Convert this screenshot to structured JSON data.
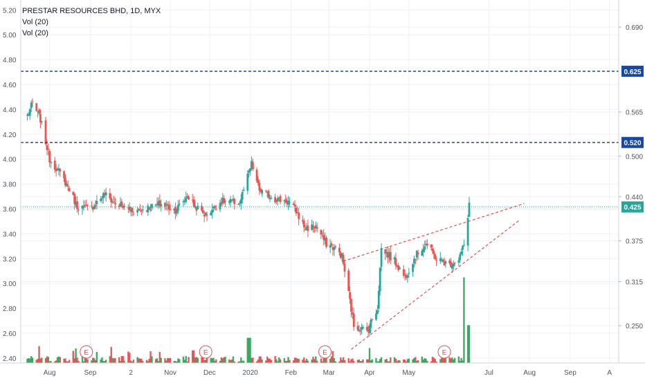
{
  "legend": {
    "title": "PRESTAR RESOURCES BHD, 1D, MYX",
    "indicators": [
      "Vol (20)",
      "Vol (20)"
    ]
  },
  "colors": {
    "up": "#26a69a",
    "down": "#ef5350",
    "vol_up": "#2e9e56",
    "vol_down": "#e04848",
    "grid": "#eef1f5",
    "level": "#1848a0",
    "current": "#26a69a",
    "trend": "#e05050",
    "text": "#50535e"
  },
  "chart_data": {
    "type": "candlestick",
    "left_axis": {
      "ticks": [
        "5.20",
        "5.00",
        "4.80",
        "4.60",
        "4.40",
        "4.20",
        "4.00",
        "3.80",
        "3.60",
        "3.40",
        "3.20",
        "3.00",
        "2.80",
        "2.60",
        "2.40"
      ],
      "range": [
        2.36,
        5.28
      ]
    },
    "right_axis": {
      "ticks": [
        "0.690",
        "0.565",
        "0.500",
        "0.440",
        "0.375",
        "0.315",
        "0.250"
      ],
      "range": [
        0.195,
        0.73
      ]
    },
    "x_ticks": [
      "Aug",
      "Sep",
      "2",
      "Nov",
      "Dec",
      "2020",
      "Feb",
      "Mar",
      "Apr",
      "May",
      "Jul",
      "Aug",
      "Sep",
      "A"
    ],
    "levels": [
      {
        "value": 0.625,
        "label": "0.625",
        "style": "dashed"
      },
      {
        "value": 0.52,
        "label": "0.520",
        "style": "dashed"
      },
      {
        "value": 0.425,
        "label": "0.425",
        "style": "dotted",
        "current": true
      }
    ],
    "trendlines": [
      {
        "from": [
          "2020-03-12",
          0.345
        ],
        "to": [
          "2020-07-28",
          0.43
        ]
      },
      {
        "from": [
          "2020-03-18",
          0.215
        ],
        "to": [
          "2020-07-24",
          0.405
        ]
      }
    ],
    "event_markers": [
      {
        "label": "E",
        "date": "2019-08-29"
      },
      {
        "label": "E",
        "date": "2019-11-28"
      },
      {
        "label": "E",
        "date": "2020-02-27"
      },
      {
        "label": "E",
        "date": "2020-05-28"
      }
    ],
    "keypoints": [
      [
        "2019-07-15",
        4.35
      ],
      [
        "2019-07-19",
        4.45
      ],
      [
        "2019-07-25",
        4.32
      ],
      [
        "2019-08-01",
        4.0
      ],
      [
        "2019-08-08",
        3.9
      ],
      [
        "2019-08-15",
        3.78
      ],
      [
        "2019-08-22",
        3.62
      ],
      [
        "2019-09-01",
        3.6
      ],
      [
        "2019-09-12",
        3.72
      ],
      [
        "2019-09-20",
        3.64
      ],
      [
        "2019-10-05",
        3.58
      ],
      [
        "2019-10-25",
        3.64
      ],
      [
        "2019-11-05",
        3.59
      ],
      [
        "2019-11-14",
        3.7
      ],
      [
        "2019-11-20",
        3.62
      ],
      [
        "2019-11-28",
        3.55
      ],
      [
        "2019-12-10",
        3.66
      ],
      [
        "2019-12-24",
        3.65
      ],
      [
        "2020-01-02",
        3.96
      ],
      [
        "2020-01-08",
        3.75
      ],
      [
        "2020-01-20",
        3.68
      ],
      [
        "2020-01-30",
        3.66
      ],
      [
        "2020-02-05",
        3.58
      ],
      [
        "2020-02-12",
        3.44
      ],
      [
        "2020-02-20",
        3.46
      ],
      [
        "2020-02-28",
        3.32
      ],
      [
        "2020-03-06",
        3.28
      ],
      [
        "2020-03-11",
        3.22
      ],
      [
        "2020-03-17",
        2.86
      ],
      [
        "2020-03-20",
        2.66
      ],
      [
        "2020-03-30",
        2.62
      ],
      [
        "2020-04-07",
        2.8
      ],
      [
        "2020-04-10",
        3.28
      ],
      [
        "2020-04-20",
        3.18
      ],
      [
        "2020-04-28",
        3.05
      ],
      [
        "2020-05-06",
        3.22
      ],
      [
        "2020-05-14",
        3.32
      ],
      [
        "2020-05-22",
        3.2
      ],
      [
        "2020-06-01",
        3.15
      ],
      [
        "2020-06-08",
        3.2
      ],
      [
        "2020-06-14",
        3.36
      ],
      [
        "2020-06-16",
        3.65
      ]
    ],
    "volume_spikes": [
      [
        "2020-06-13",
        0.95
      ],
      [
        "2020-06-16",
        0.42
      ],
      [
        "2019-12-31",
        0.28
      ],
      [
        "2019-11-18",
        0.14
      ]
    ],
    "x_range": [
      "2019-07-10",
      "2020-10-08"
    ]
  }
}
